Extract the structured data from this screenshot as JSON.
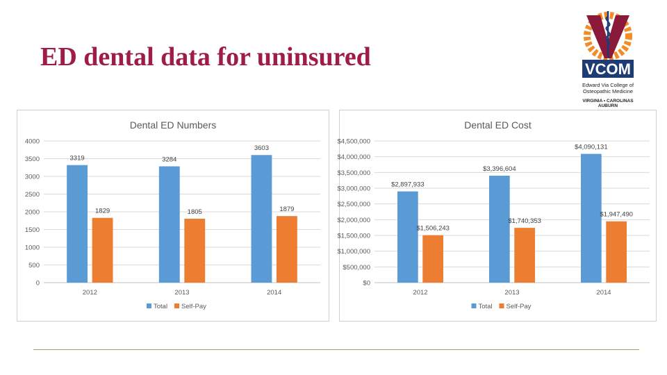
{
  "slide": {
    "title": "ED dental data for uninsured"
  },
  "logo": {
    "letters": "VCOM",
    "line1": "Edward Via College of",
    "line2": "Osteopathic Medicine",
    "line3": "VIRGINIA • CAROLINAS",
    "line4": "AUBURN",
    "colors": {
      "maroon": "#8b1a3a",
      "orange": "#f28c28",
      "navy": "#1f3b73"
    }
  },
  "colors": {
    "total": "#5b9bd5",
    "self_pay": "#ed7d31",
    "title": "#9e1b4a"
  },
  "chart_data": [
    {
      "type": "bar",
      "title": "Dental ED Numbers",
      "categories": [
        "2012",
        "2013",
        "2014"
      ],
      "series": [
        {
          "name": "Total",
          "values": [
            3319,
            3284,
            3603
          ],
          "labels": [
            "3319",
            "3284",
            "3603"
          ]
        },
        {
          "name": "Self-Pay",
          "values": [
            1829,
            1805,
            1879
          ],
          "labels": [
            "1829",
            "1805",
            "1879"
          ]
        }
      ],
      "ylim": [
        0,
        4000
      ],
      "yticks": [
        0,
        500,
        1000,
        1500,
        2000,
        2500,
        3000,
        3500,
        4000
      ],
      "ytick_labels": [
        "0",
        "500",
        "1000",
        "1500",
        "2000",
        "2500",
        "3000",
        "3500",
        "4000"
      ],
      "legend": "bottom",
      "grid": true
    },
    {
      "type": "bar",
      "title": "Dental ED Cost",
      "categories": [
        "2012",
        "2013",
        "2014"
      ],
      "series": [
        {
          "name": "Total",
          "values": [
            2897933,
            3396604,
            4090131
          ],
          "labels": [
            "$2,897,933",
            "$3,396,604",
            "$4,090,131"
          ]
        },
        {
          "name": "Self-Pay",
          "values": [
            1506243,
            1740353,
            1947490
          ],
          "labels": [
            "$1,506,243",
            "$1,740,353",
            "$1,947,490"
          ]
        }
      ],
      "ylim": [
        0,
        4500000
      ],
      "yticks": [
        0,
        500000,
        1000000,
        1500000,
        2000000,
        2500000,
        3000000,
        3500000,
        4000000,
        4500000
      ],
      "ytick_labels": [
        "$0",
        "$500,000",
        "$1,000,000",
        "$1,500,000",
        "$2,000,000",
        "$2,500,000",
        "$3,000,000",
        "$3,500,000",
        "$4,000,000",
        "$4,500,000"
      ],
      "legend": "bottom",
      "grid": true
    }
  ]
}
